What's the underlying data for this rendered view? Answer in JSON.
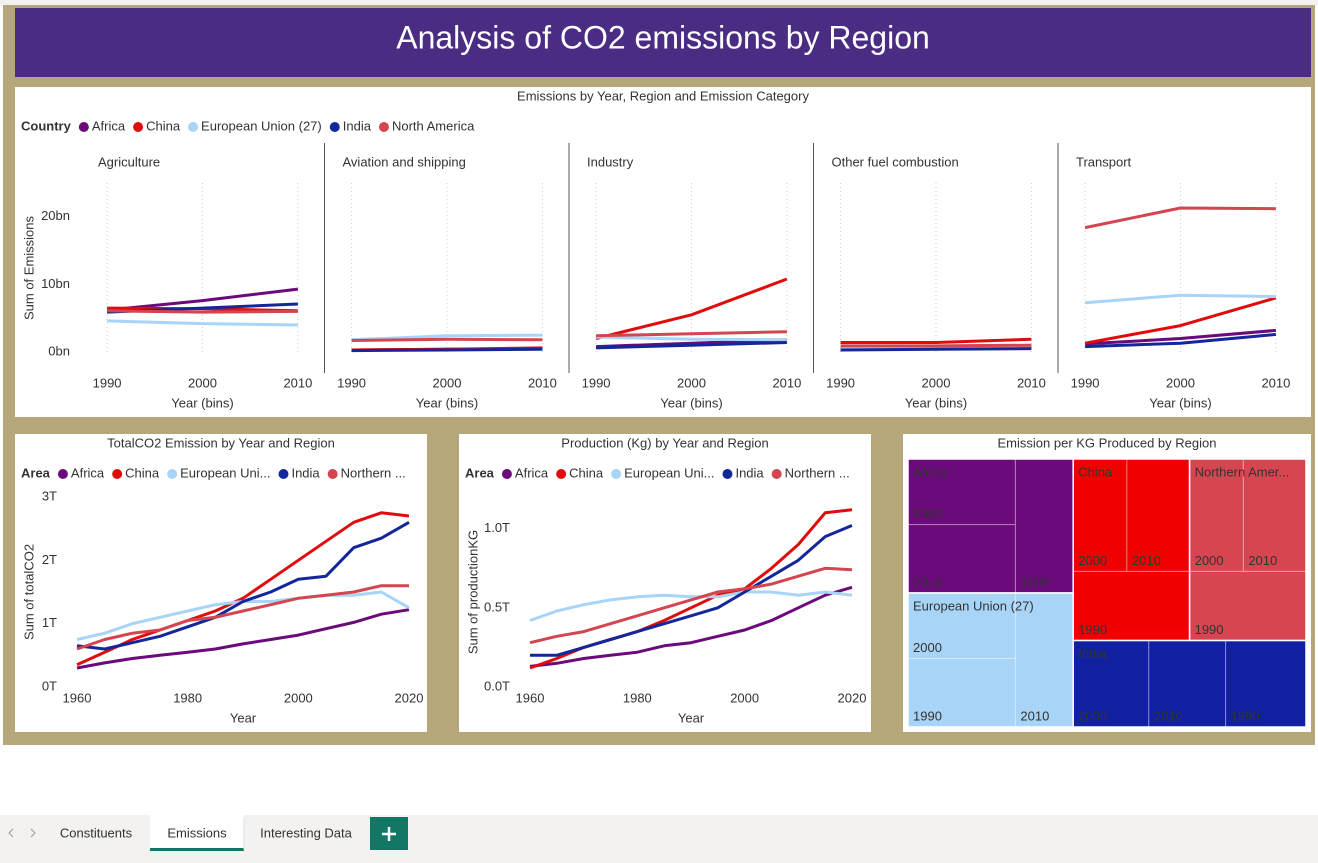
{
  "header": {
    "title": "Analysis of CO2 emissions by Region"
  },
  "chart_data": [
    {
      "type": "line",
      "title": "Emissions by Year, Region and Emission Category",
      "legend_title": "Country",
      "x_label": "Year (bins)",
      "y_label": "Sum of Emissions",
      "x": [
        1990,
        2000,
        2010
      ],
      "xlim": [
        1988,
        2012
      ],
      "xticks": [
        1990,
        2000,
        2010
      ],
      "ylim": [
        0,
        25
      ],
      "yticks": [
        {
          "value": 0,
          "label": "0bn"
        },
        {
          "value": 10,
          "label": "10bn"
        },
        {
          "value": 20,
          "label": "20bn"
        }
      ],
      "grid": "x",
      "series": [
        {
          "name": "Africa",
          "color": "#6b0a7a"
        },
        {
          "name": "China",
          "color": "#e00c0c"
        },
        {
          "name": "European Union (27)",
          "color": "#a8d4f7"
        },
        {
          "name": "India",
          "color": "#14279a"
        },
        {
          "name": "North America",
          "color": "#d4464f"
        }
      ],
      "panels": [
        {
          "title": "Agriculture",
          "series": [
            {
              "values": [
                6.2,
                7.6,
                9.3
              ]
            },
            {
              "values": [
                6.5,
                6.4,
                6.1
              ]
            },
            {
              "values": [
                4.6,
                4.2,
                4.0
              ]
            },
            {
              "values": [
                5.9,
                6.5,
                7.1
              ]
            },
            {
              "values": [
                6.1,
                5.9,
                6.0
              ]
            }
          ]
        },
        {
          "title": "Aviation and shipping",
          "series": [
            {
              "values": [
                0.3,
                0.4,
                0.5
              ]
            },
            {
              "values": [
                0.3,
                0.4,
                0.6
              ]
            },
            {
              "values": [
                1.8,
                2.4,
                2.5
              ]
            },
            {
              "values": [
                0.2,
                0.3,
                0.4
              ]
            },
            {
              "values": [
                1.7,
                1.9,
                1.8
              ]
            }
          ]
        },
        {
          "title": "Industry",
          "series": [
            {
              "values": [
                0.8,
                1.3,
                1.8
              ]
            },
            {
              "values": [
                2.0,
                5.5,
                10.8
              ]
            },
            {
              "values": [
                2.2,
                1.9,
                1.8
              ]
            },
            {
              "values": [
                0.6,
                1.0,
                1.4
              ]
            },
            {
              "values": [
                2.4,
                2.7,
                3.0
              ]
            }
          ]
        },
        {
          "title": "Other fuel combustion",
          "series": [
            {
              "values": [
                0.5,
                0.5,
                0.7
              ]
            },
            {
              "values": [
                1.4,
                1.4,
                1.9
              ]
            },
            {
              "values": [
                0.6,
                0.6,
                0.6
              ]
            },
            {
              "values": [
                0.3,
                0.4,
                0.5
              ]
            },
            {
              "values": [
                0.9,
                0.9,
                1.0
              ]
            }
          ]
        },
        {
          "title": "Transport",
          "series": [
            {
              "values": [
                1.2,
                2.0,
                3.2
              ]
            },
            {
              "values": [
                1.3,
                3.9,
                8.0
              ]
            },
            {
              "values": [
                7.3,
                8.4,
                8.2
              ]
            },
            {
              "values": [
                0.8,
                1.3,
                2.6
              ]
            },
            {
              "values": [
                18.4,
                21.3,
                21.2
              ]
            }
          ]
        }
      ]
    },
    {
      "type": "line",
      "title": "TotalCO2 Emission by Year and Region",
      "legend_title": "Area",
      "x_label": "Year",
      "y_label": "Sum of totalCO2",
      "x": [
        1960,
        1965,
        1970,
        1975,
        1980,
        1985,
        1990,
        1995,
        2000,
        2005,
        2010,
        2015,
        2020
      ],
      "xlim": [
        1960,
        2020
      ],
      "xticks": [
        1960,
        1980,
        2000,
        2020
      ],
      "ylim": [
        0,
        3
      ],
      "yticks": [
        {
          "value": 0,
          "label": "0T"
        },
        {
          "value": 1,
          "label": "1T"
        },
        {
          "value": 2,
          "label": "2T"
        },
        {
          "value": 3,
          "label": "3T"
        }
      ],
      "grid": false,
      "series": [
        {
          "name": "Africa",
          "color": "#6b0a7a",
          "values": [
            0.3,
            0.38,
            0.45,
            0.5,
            0.55,
            0.6,
            0.68,
            0.75,
            0.82,
            0.92,
            1.02,
            1.15,
            1.22
          ]
        },
        {
          "name": "China",
          "color": "#e00c0c",
          "values": [
            0.35,
            0.55,
            0.75,
            0.9,
            1.05,
            1.2,
            1.4,
            1.7,
            2.0,
            2.3,
            2.6,
            2.75,
            2.7
          ]
        },
        {
          "name": "European Uni...",
          "color": "#a8d4f7",
          "values": [
            0.75,
            0.85,
            1.0,
            1.1,
            1.2,
            1.3,
            1.35,
            1.35,
            1.4,
            1.45,
            1.45,
            1.5,
            1.25
          ]
        },
        {
          "name": "India",
          "color": "#14279a",
          "values": [
            0.65,
            0.6,
            0.7,
            0.8,
            0.95,
            1.1,
            1.35,
            1.5,
            1.7,
            1.75,
            2.2,
            2.35,
            2.6
          ]
        },
        {
          "name": "Northern ...",
          "color": "#d4464f",
          "values": [
            0.6,
            0.75,
            0.85,
            0.9,
            1.05,
            1.1,
            1.2,
            1.3,
            1.4,
            1.45,
            1.5,
            1.6,
            1.6
          ]
        }
      ]
    },
    {
      "type": "line",
      "title": "Production (Kg) by Year and Region",
      "legend_title": "Area",
      "x_label": "Year",
      "y_label": "Sum of productionKG",
      "x": [
        1960,
        1965,
        1970,
        1975,
        1980,
        1985,
        1990,
        1995,
        2000,
        2005,
        2010,
        2015,
        2020
      ],
      "xlim": [
        1960,
        2020
      ],
      "xticks": [
        1960,
        1980,
        2000,
        2020
      ],
      "ylim": [
        0,
        1.2
      ],
      "yticks": [
        {
          "value": 0,
          "label": "0.0T"
        },
        {
          "value": 0.5,
          "label": "0.5T"
        },
        {
          "value": 1,
          "label": "1.0T"
        }
      ],
      "grid": false,
      "series": [
        {
          "name": "Africa",
          "color": "#6b0a7a",
          "values": [
            0.13,
            0.15,
            0.18,
            0.2,
            0.22,
            0.26,
            0.28,
            0.32,
            0.36,
            0.42,
            0.5,
            0.58,
            0.63
          ]
        },
        {
          "name": "China",
          "color": "#e00c0c",
          "values": [
            0.12,
            0.18,
            0.25,
            0.3,
            0.35,
            0.42,
            0.5,
            0.58,
            0.62,
            0.75,
            0.9,
            1.1,
            1.12
          ]
        },
        {
          "name": "European Uni...",
          "color": "#a8d4f7",
          "values": [
            0.42,
            0.48,
            0.52,
            0.55,
            0.57,
            0.58,
            0.57,
            0.57,
            0.6,
            0.6,
            0.58,
            0.6,
            0.58
          ]
        },
        {
          "name": "India",
          "color": "#14279a",
          "values": [
            0.2,
            0.2,
            0.25,
            0.3,
            0.35,
            0.4,
            0.45,
            0.5,
            0.6,
            0.7,
            0.8,
            0.95,
            1.02
          ]
        },
        {
          "name": "Northern ...",
          "color": "#d4464f",
          "values": [
            0.28,
            0.32,
            0.35,
            0.4,
            0.45,
            0.5,
            0.55,
            0.6,
            0.62,
            0.65,
            0.7,
            0.75,
            0.74
          ]
        }
      ]
    },
    {
      "type": "treemap",
      "title": "Emission per KG Produced by Region",
      "groups": [
        {
          "name": "Africa",
          "color": "#6b0a7a",
          "children": [
            {
              "label": "2000",
              "value": 7.0
            },
            {
              "label": "2010",
              "value": 7.3
            },
            {
              "label": "1990",
              "value": 7.7
            }
          ]
        },
        {
          "name": "European Union (27)",
          "color": "#a8d4f7",
          "children": [
            {
              "label": "2000",
              "value": 7.0
            },
            {
              "label": "1990",
              "value": 7.3
            },
            {
              "label": "2010",
              "value": 7.7
            }
          ]
        },
        {
          "name": "China",
          "color": "#f00000",
          "children": [
            {
              "label": "2000",
              "value": 6.0
            },
            {
              "label": "2010",
              "value": 7.0
            },
            {
              "label": "1990",
              "value": 8.0
            }
          ]
        },
        {
          "name": "Northern Amer...",
          "color": "#d64550",
          "children": [
            {
              "label": "2000",
              "value": 6.0
            },
            {
              "label": "2010",
              "value": 7.0
            },
            {
              "label": "1990",
              "value": 8.0
            }
          ]
        },
        {
          "name": "India",
          "color": "#1020a0",
          "children": [
            {
              "label": "2000",
              "value": 6.5
            },
            {
              "label": "2010",
              "value": 6.6
            },
            {
              "label": "1990",
              "value": 6.9
            }
          ]
        }
      ]
    }
  ],
  "tabs": [
    "Constituents",
    "Emissions",
    "Interesting Data"
  ],
  "active_tab": 1
}
